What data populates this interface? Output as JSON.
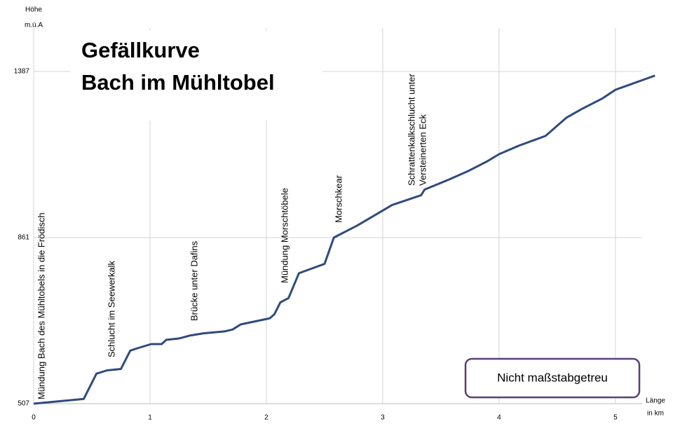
{
  "chart_data": {
    "type": "line",
    "title": [
      "Gefällkurve",
      "Bach im Mühltobel"
    ],
    "y_label": [
      "Höhe",
      "m.ü.A"
    ],
    "x_label": [
      "Länge",
      "in km"
    ],
    "note": "Nicht maßstabgetreu",
    "annotations": [
      "Mündung Bach des Mühltobels in die Frödisch",
      "Schlucht im Seewerkalk",
      "Brücke unter Dafins",
      "Mündung Morschtöbele",
      "Morschkear",
      "Schrattenkalkschlucht  unter",
      "Versteinerten  Eck"
    ],
    "xlim": [
      0,
      5.35
    ],
    "xticks": [
      0,
      1,
      2,
      3,
      4,
      5
    ],
    "ylim": [
      507,
      1387
    ],
    "yticks": [
      507,
      861,
      1387
    ],
    "grid": true,
    "series": [
      {
        "color": "#2f4b7c",
        "x": [
          0,
          0.43,
          0.54,
          0.63,
          0.75,
          0.83,
          0.89,
          1.01,
          1.1,
          1.14,
          1.25,
          1.34,
          1.46,
          1.64,
          1.71,
          1.78,
          2.03,
          2.07,
          2.12,
          2.19,
          2.28,
          2.5,
          2.58,
          2.78,
          3.02,
          3.08,
          3.33,
          3.36,
          3.57,
          3.73,
          3.9,
          4.0,
          4.17,
          4.4,
          4.49,
          4.58,
          4.71,
          4.89,
          5.0,
          5.34
        ],
        "values": [
          507,
          517,
          571,
          578,
          581,
          620,
          625,
          634,
          634,
          643,
          646,
          652,
          657,
          661,
          665,
          676,
          689,
          698,
          723,
          732,
          785,
          805,
          861,
          899,
          951,
          964,
          995,
          1013,
          1045,
          1071,
          1103,
          1125,
          1152,
          1183,
          1212,
          1241,
          1268,
          1302,
          1329,
          1374
        ]
      }
    ]
  }
}
